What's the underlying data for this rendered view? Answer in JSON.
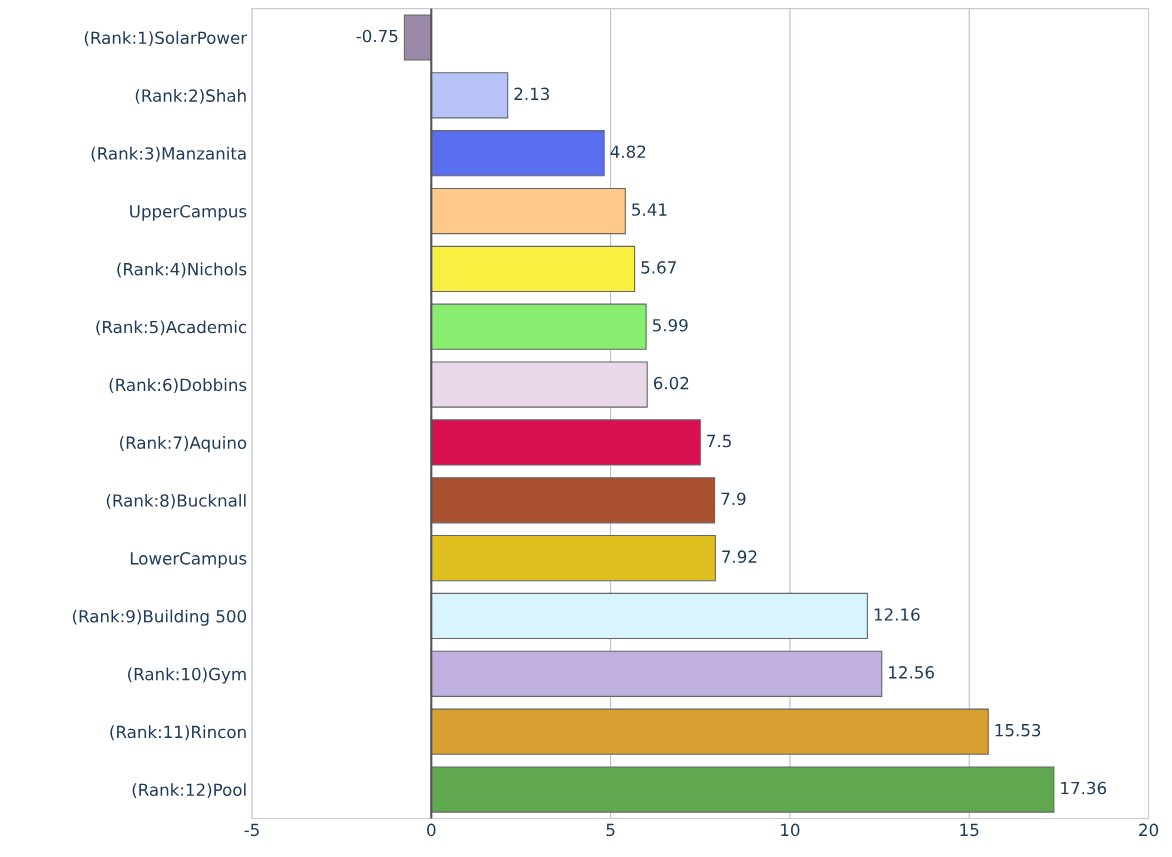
{
  "chart_data": {
    "type": "bar",
    "orientation": "horizontal",
    "categories": [
      "(Rank:1)SolarPower",
      "(Rank:2)Shah",
      "(Rank:3)Manzanita",
      "UpperCampus",
      "(Rank:4)Nichols",
      "(Rank:5)Academic",
      "(Rank:6)Dobbins",
      "(Rank:7)Aquino",
      "(Rank:8)Bucknall",
      "LowerCampus",
      "(Rank:9)Building 500",
      "(Rank:10)Gym",
      "(Rank:11)Rincon",
      "(Rank:12)Pool"
    ],
    "values": [
      -0.75,
      2.13,
      4.82,
      5.41,
      5.67,
      5.99,
      6.02,
      7.5,
      7.9,
      7.92,
      12.16,
      12.56,
      15.53,
      17.36
    ],
    "colors": [
      "#9a88a8",
      "#b8c4f8",
      "#5a6ef0",
      "#ffc98a",
      "#f8f040",
      "#88ee70",
      "#e8d8e8",
      "#d81050",
      "#a85030",
      "#e0c020",
      "#d8f4ff",
      "#c0b0e0",
      "#d8a030",
      "#60a850"
    ],
    "xlim": [
      -5,
      20
    ],
    "xticks": [
      -5,
      0,
      5,
      10,
      15,
      20
    ],
    "grid": "x",
    "data_labels": true,
    "ref_lines": [
      {
        "axis": "x",
        "value": 0,
        "color": "#555555"
      }
    ]
  }
}
